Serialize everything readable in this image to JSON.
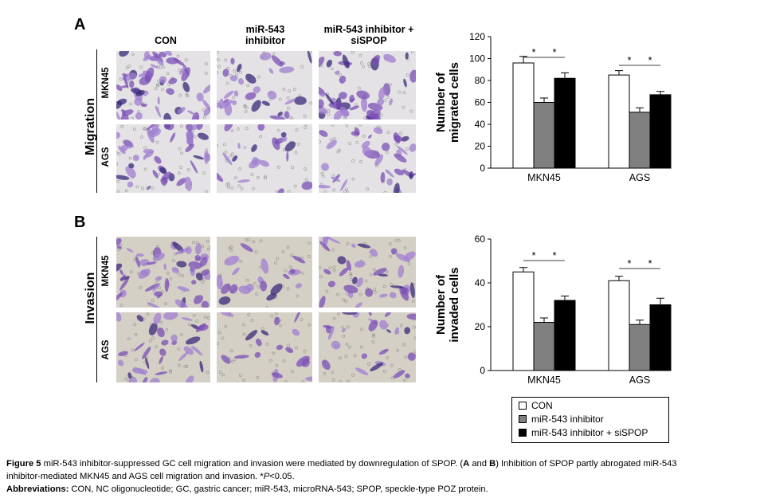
{
  "panel_a_letter": "A",
  "panel_b_letter": "B",
  "col_headers": [
    "CON",
    "miR-543\ninhibitor",
    "miR-543 inhibitor +\nsiSPOP"
  ],
  "row_migration": "Migration",
  "row_invasion": "Invasion",
  "cell_mkn45": "MKN45",
  "cell_ags": "AGS",
  "colors": {
    "stain": "#8a5cc0",
    "background": "#e4e2e4",
    "invasion_bg": "#d5d0c6",
    "con": "#ffffff",
    "inhibitor": "#808080",
    "inhibitor_sispop": "#000000"
  },
  "chart_data": [
    {
      "type": "bar",
      "ylabel": "Number of\nmigrated cells",
      "ylim": [
        0,
        120
      ],
      "yticks": [
        0,
        20,
        40,
        60,
        80,
        100,
        120
      ],
      "categories": [
        "MKN45",
        "AGS"
      ],
      "series": [
        {
          "name": "CON",
          "values": [
            96,
            85
          ],
          "errors": [
            6,
            4
          ]
        },
        {
          "name": "miR-543 inhibitor",
          "values": [
            60,
            51
          ],
          "errors": [
            4,
            4
          ]
        },
        {
          "name": "miR-543 inhibitor + siSPOP",
          "values": [
            82,
            67
          ],
          "errors": [
            5,
            3
          ]
        }
      ],
      "significance": "*"
    },
    {
      "type": "bar",
      "ylabel": "Number of\ninvaded cells",
      "ylim": [
        0,
        60
      ],
      "yticks": [
        0,
        20,
        40,
        60
      ],
      "categories": [
        "MKN45",
        "AGS"
      ],
      "series": [
        {
          "name": "CON",
          "values": [
            45,
            41
          ],
          "errors": [
            2,
            2
          ]
        },
        {
          "name": "miR-543 inhibitor",
          "values": [
            22,
            21
          ],
          "errors": [
            2,
            2
          ]
        },
        {
          "name": "miR-543 inhibitor + siSPOP",
          "values": [
            32,
            30
          ],
          "errors": [
            2,
            3
          ]
        }
      ],
      "significance": "*"
    }
  ],
  "legend": [
    "CON",
    "miR-543 inhibitor",
    "miR-543 inhibitor + siSPOP"
  ],
  "caption": {
    "fig_label": "Figure 5",
    "line1_a": " miR-543 inhibitor-suppressed GC cell migration and invasion were mediated by downregulation of SPOP. (",
    "A": "A",
    "and": " and ",
    "B": "B",
    "line1_b": ") Inhibition of SPOP partly abrogated miR-543",
    "line2_a": "inhibitor-mediated MKN45 and AGS cell migration and invasion. *",
    "P": "P",
    "line2_b": "<0.05.",
    "abbr_label": "Abbreviations:",
    "abbr_text": " CON, NC oligonucleotide; GC, gastric cancer; miR-543, microRNA-543; SPOP, speckle-type POZ protein."
  }
}
